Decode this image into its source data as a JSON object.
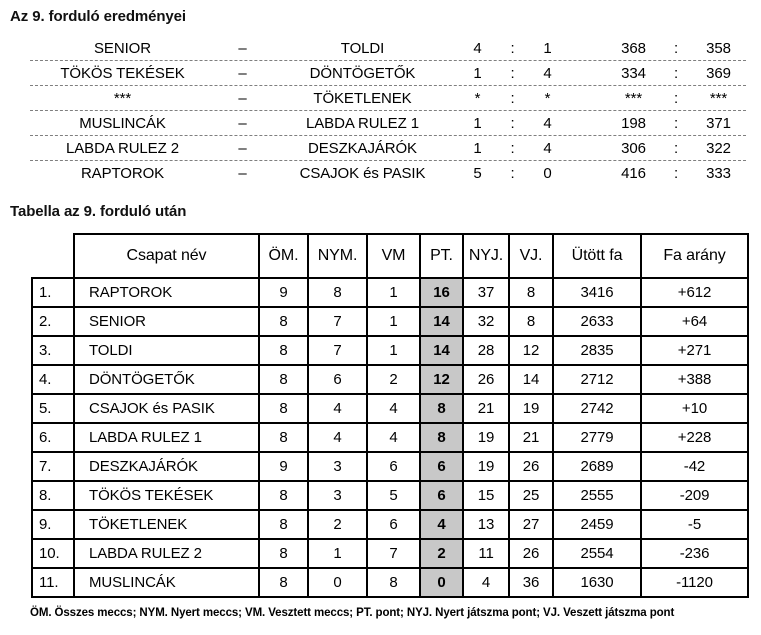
{
  "results_section": {
    "title": "Az 9. forduló eredményei",
    "dash": "–",
    "separator": ":",
    "rows": [
      {
        "home": "SENIOR",
        "away": "TOLDI",
        "score_home": "4",
        "score_away": "1",
        "pins_home": "368",
        "pins_away": "358"
      },
      {
        "home": "TÖKÖS TEKÉSEK",
        "away": "DÖNTÖGETŐK",
        "score_home": "1",
        "score_away": "4",
        "pins_home": "334",
        "pins_away": "369"
      },
      {
        "home": "***",
        "away": "TÖKETLENEK",
        "score_home": "*",
        "score_away": "*",
        "pins_home": "***",
        "pins_away": "***"
      },
      {
        "home": "MUSLINCÁK",
        "away": "LABDA RULEZ 1",
        "score_home": "1",
        "score_away": "4",
        "pins_home": "198",
        "pins_away": "371"
      },
      {
        "home": "LABDA RULEZ 2",
        "away": "DESZKAJÁRÓK",
        "score_home": "1",
        "score_away": "4",
        "pins_home": "306",
        "pins_away": "322"
      },
      {
        "home": "RAPTOROK",
        "away": "CSAJOK és PASIK",
        "score_home": "5",
        "score_away": "0",
        "pins_home": "416",
        "pins_away": "333"
      }
    ]
  },
  "standings_section": {
    "title": "Tabella az 9. forduló után",
    "columns": [
      "Csapat név",
      "ÖM.",
      "NYM.",
      "VM",
      "PT.",
      "NYJ.",
      "VJ.",
      "Ütött fa",
      "Fa arány"
    ],
    "highlight_color": "#c8c8c8",
    "rows": [
      {
        "rank": "1.",
        "team": "RAPTOROK",
        "om": "9",
        "nym": "8",
        "vm": "1",
        "pt": "16",
        "nyj": "37",
        "vj": "8",
        "utott_fa": "3416",
        "fa_arany": "+612"
      },
      {
        "rank": "2.",
        "team": "SENIOR",
        "om": "8",
        "nym": "7",
        "vm": "1",
        "pt": "14",
        "nyj": "32",
        "vj": "8",
        "utott_fa": "2633",
        "fa_arany": "+64"
      },
      {
        "rank": "3.",
        "team": "TOLDI",
        "om": "8",
        "nym": "7",
        "vm": "1",
        "pt": "14",
        "nyj": "28",
        "vj": "12",
        "utott_fa": "2835",
        "fa_arany": "+271"
      },
      {
        "rank": "4.",
        "team": "DÖNTÖGETŐK",
        "om": "8",
        "nym": "6",
        "vm": "2",
        "pt": "12",
        "nyj": "26",
        "vj": "14",
        "utott_fa": "2712",
        "fa_arany": "+388"
      },
      {
        "rank": "5.",
        "team": "CSAJOK és PASIK",
        "om": "8",
        "nym": "4",
        "vm": "4",
        "pt": "8",
        "nyj": "21",
        "vj": "19",
        "utott_fa": "2742",
        "fa_arany": "+10"
      },
      {
        "rank": "6.",
        "team": "LABDA RULEZ 1",
        "om": "8",
        "nym": "4",
        "vm": "4",
        "pt": "8",
        "nyj": "19",
        "vj": "21",
        "utott_fa": "2779",
        "fa_arany": "+228"
      },
      {
        "rank": "7.",
        "team": "DESZKAJÁRÓK",
        "om": "9",
        "nym": "3",
        "vm": "6",
        "pt": "6",
        "nyj": "19",
        "vj": "26",
        "utott_fa": "2689",
        "fa_arany": "-42"
      },
      {
        "rank": "8.",
        "team": "TÖKÖS TEKÉSEK",
        "om": "8",
        "nym": "3",
        "vm": "5",
        "pt": "6",
        "nyj": "15",
        "vj": "25",
        "utott_fa": "2555",
        "fa_arany": "-209"
      },
      {
        "rank": "9.",
        "team": "TÖKETLENEK",
        "om": "8",
        "nym": "2",
        "vm": "6",
        "pt": "4",
        "nyj": "13",
        "vj": "27",
        "utott_fa": "2459",
        "fa_arany": "-5"
      },
      {
        "rank": "10.",
        "team": "LABDA RULEZ 2",
        "om": "8",
        "nym": "1",
        "vm": "7",
        "pt": "2",
        "nyj": "11",
        "vj": "26",
        "utott_fa": "2554",
        "fa_arany": "-236"
      },
      {
        "rank": "11.",
        "team": "MUSLINCÁK",
        "om": "8",
        "nym": "0",
        "vm": "8",
        "pt": "0",
        "nyj": "4",
        "vj": "36",
        "utott_fa": "1630",
        "fa_arany": "-1120"
      }
    ]
  },
  "footnote": "ÖM. Összes meccs; NYM. Nyert meccs; VM. Vesztett meccs; PT. pont; NYJ. Nyert játszma pont; VJ. Veszett játszma pont"
}
